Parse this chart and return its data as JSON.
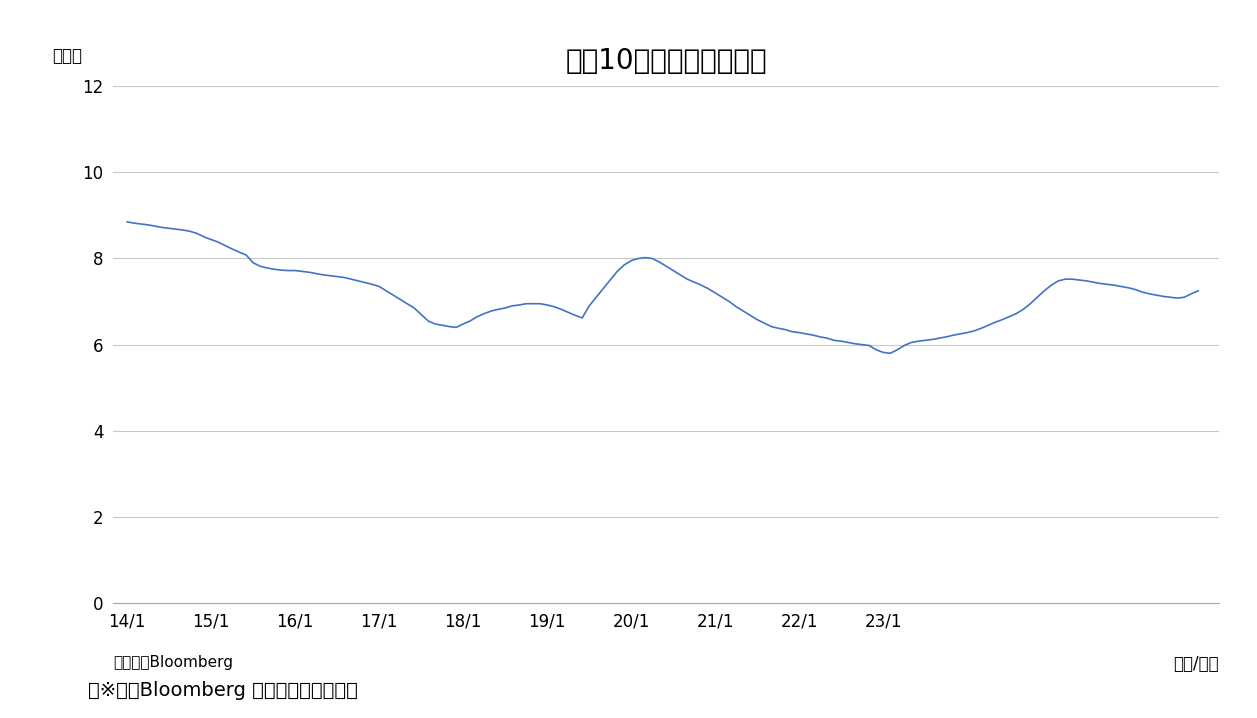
{
  "title": "イン10年国債金利の推移",
  "ylabel": "（％）",
  "xlabel_right": "（年/月）",
  "source_left": "（資料）Bloomberg",
  "footnote": "（※）　Bloomberg のデータに基づく。",
  "line_color": "#4472C4",
  "background_color": "#ffffff",
  "grid_color": "#c8c8c8",
  "ylim": [
    0,
    12
  ],
  "yticks": [
    0,
    2,
    4,
    6,
    8,
    10,
    12
  ],
  "xtick_labels": [
    "14/1",
    "15/1",
    "16/1",
    "17/1",
    "18/1",
    "19/1",
    "20/1",
    "21/1",
    "22/1",
    "23/1"
  ],
  "title_fontsize": 20,
  "axis_fontsize": 12,
  "footnote_fontsize": 14,
  "data": [
    8.85,
    8.82,
    8.8,
    8.78,
    8.75,
    8.72,
    8.7,
    8.68,
    8.66,
    8.63,
    8.58,
    8.5,
    8.44,
    8.38,
    8.3,
    8.22,
    8.15,
    8.08,
    7.9,
    7.82,
    7.78,
    7.75,
    7.73,
    7.72,
    7.72,
    7.7,
    7.68,
    7.65,
    7.62,
    7.6,
    7.58,
    7.56,
    7.52,
    7.48,
    7.44,
    7.4,
    7.35,
    7.25,
    7.15,
    7.05,
    6.95,
    6.85,
    6.7,
    6.55,
    6.48,
    6.45,
    6.42,
    6.4,
    6.48,
    6.55,
    6.65,
    6.72,
    6.78,
    6.82,
    6.85,
    6.9,
    6.92,
    6.95,
    6.95,
    6.95,
    6.92,
    6.88,
    6.82,
    6.75,
    6.68,
    6.62,
    6.9,
    7.1,
    7.3,
    7.5,
    7.7,
    7.85,
    7.95,
    8.0,
    8.02,
    8.0,
    7.92,
    7.82,
    7.72,
    7.62,
    7.52,
    7.45,
    7.38,
    7.3,
    7.2,
    7.1,
    7.0,
    6.88,
    6.78,
    6.68,
    6.58,
    6.5,
    6.42,
    6.38,
    6.35,
    6.3,
    6.28,
    6.25,
    6.22,
    6.18,
    6.15,
    6.1,
    6.08,
    6.05,
    6.02,
    6.0,
    5.98,
    5.88,
    5.82,
    5.8,
    5.88,
    5.98,
    6.05,
    6.08,
    6.1,
    6.12,
    6.15,
    6.18,
    6.22,
    6.25,
    6.28,
    6.32,
    6.38,
    6.45,
    6.52,
    6.58,
    6.65,
    6.72,
    6.82,
    6.95,
    7.1,
    7.25,
    7.38,
    7.48,
    7.52,
    7.52,
    7.5,
    7.48,
    7.45,
    7.42,
    7.4,
    7.38,
    7.35,
    7.32,
    7.28,
    7.22,
    7.18,
    7.15,
    7.12,
    7.1,
    7.08,
    7.1,
    7.18,
    7.25
  ]
}
